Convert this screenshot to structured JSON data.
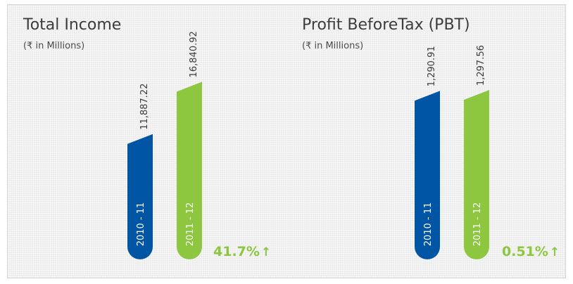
{
  "colors": {
    "year1": "#0155a5",
    "year2": "#8dc63f",
    "growth": "#8dc63f"
  },
  "growth_icon": "arrow-up-icon",
  "charts": [
    {
      "title": "Total Income",
      "subtitle": "(₹ in Millions)",
      "growth": "41.7%",
      "arrow": "↑"
    },
    {
      "title": "Profit BeforeTax (PBT)",
      "subtitle": "(₹ in Millions)",
      "growth": "0.51%",
      "arrow": "↑"
    }
  ],
  "chart_data": [
    {
      "type": "bar",
      "title": "Total Income",
      "subtitle": "(₹ in Millions)",
      "categories": [
        "2010 - 11",
        "2011 - 12"
      ],
      "values": [
        11887.22,
        16840.92
      ],
      "value_labels": [
        "11,887.22",
        "16,840.92"
      ],
      "growth_label": "41.7%"
    },
    {
      "type": "bar",
      "title": "Profit BeforeTax (PBT)",
      "subtitle": "(₹ in Millions)",
      "categories": [
        "2010 - 11",
        "2011 - 12"
      ],
      "values": [
        1290.91,
        1297.56
      ],
      "value_labels": [
        "1,290.91",
        "1,297.56"
      ],
      "growth_label": "0.51%"
    }
  ]
}
